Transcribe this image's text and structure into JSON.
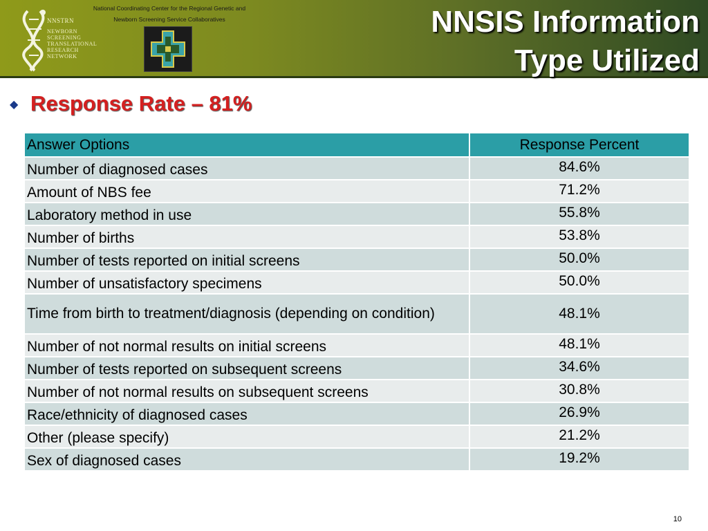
{
  "header": {
    "org_line1": "National Coordinating Center for the Regional Genetic and",
    "org_line2": "Newborn Screening Service Collaboratives",
    "logo_name": "NNSTRN",
    "logo_lines": [
      "NEWBORN",
      "SCREENING",
      "TRANSLATIONAL",
      "RESEARCH",
      "NETWORK"
    ],
    "title_line1": "NNSIS Information",
    "title_line2": "Type Utilized"
  },
  "subtitle": "Response Rate – 81%",
  "table": {
    "headers": [
      "Answer Options",
      "Response Percent"
    ],
    "rows": [
      {
        "option": "Number of diagnosed cases",
        "percent": "84.6%"
      },
      {
        "option": "Amount of NBS fee",
        "percent": "71.2%"
      },
      {
        "option": "Laboratory method in use",
        "percent": "55.8%"
      },
      {
        "option": "Number of births",
        "percent": "53.8%"
      },
      {
        "option": "Number of tests reported on initial screens",
        "percent": "50.0%"
      },
      {
        "option": "Number of unsatisfactory specimens",
        "percent": "50.0%"
      },
      {
        "option": "Time from birth to treatment/diagnosis (depending on condition)",
        "percent": "48.1%"
      },
      {
        "option": "Number of not normal results on initial screens",
        "percent": "48.1%"
      },
      {
        "option": "Number of tests reported on subsequent screens",
        "percent": "34.6%"
      },
      {
        "option": "Number of not normal results on subsequent screens",
        "percent": "30.8%"
      },
      {
        "option": "Race/ethnicity of diagnosed cases",
        "percent": "26.9%"
      },
      {
        "option": "Other (please specify)",
        "percent": "21.2%"
      },
      {
        "option": "Sex of diagnosed cases",
        "percent": "19.2%"
      }
    ]
  },
  "page_number": "10",
  "colors": {
    "table_header": "#2b9ea6",
    "subtitle": "#d42020",
    "banner": "#7d8a20"
  }
}
